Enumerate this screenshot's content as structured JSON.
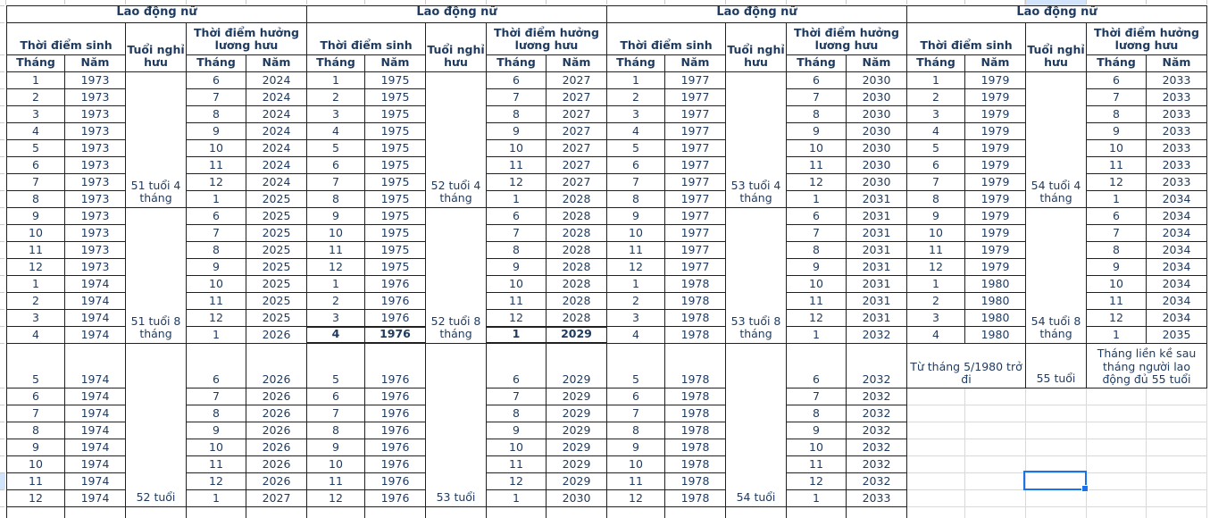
{
  "table": {
    "group_title": "Lao động nữ",
    "headers": {
      "birth": "Thời điểm sinh",
      "age": "Tuổi nghỉ hưu",
      "pension": "Thời điểm hưởng lương hưu",
      "month": "Tháng",
      "year": "Năm"
    },
    "row_format": [
      "birth_month",
      "birth_year",
      "pension_month",
      "pension_year"
    ],
    "bold_row": {
      "group": 1,
      "segment": 1,
      "row": 7
    },
    "groups": [
      {
        "segments": [
          {
            "age": "51 tuổi 4 tháng",
            "rows": [
              [
                1,
                1973,
                6,
                2024
              ],
              [
                2,
                1973,
                7,
                2024
              ],
              [
                3,
                1973,
                8,
                2024
              ],
              [
                4,
                1973,
                9,
                2024
              ],
              [
                5,
                1973,
                10,
                2024
              ],
              [
                6,
                1973,
                11,
                2024
              ],
              [
                7,
                1973,
                12,
                2024
              ],
              [
                8,
                1973,
                1,
                2025
              ]
            ]
          },
          {
            "age": "51 tuổi 8 tháng",
            "rows": [
              [
                9,
                1973,
                6,
                2025
              ],
              [
                10,
                1973,
                7,
                2025
              ],
              [
                11,
                1973,
                8,
                2025
              ],
              [
                12,
                1973,
                9,
                2025
              ],
              [
                1,
                1974,
                10,
                2025
              ],
              [
                2,
                1974,
                11,
                2025
              ],
              [
                3,
                1974,
                12,
                2025
              ],
              [
                4,
                1974,
                1,
                2026
              ]
            ]
          },
          {
            "age": "52 tuổi",
            "rows": [
              [
                5,
                1974,
                6,
                2026
              ],
              [
                6,
                1974,
                7,
                2026
              ],
              [
                7,
                1974,
                8,
                2026
              ],
              [
                8,
                1974,
                9,
                2026
              ],
              [
                9,
                1974,
                10,
                2026
              ],
              [
                10,
                1974,
                11,
                2026
              ],
              [
                11,
                1974,
                12,
                2026
              ],
              [
                12,
                1974,
                1,
                2027
              ]
            ]
          }
        ]
      },
      {
        "segments": [
          {
            "age": "52 tuổi 4 tháng",
            "rows": [
              [
                1,
                1975,
                6,
                2027
              ],
              [
                2,
                1975,
                7,
                2027
              ],
              [
                3,
                1975,
                8,
                2027
              ],
              [
                4,
                1975,
                9,
                2027
              ],
              [
                5,
                1975,
                10,
                2027
              ],
              [
                6,
                1975,
                11,
                2027
              ],
              [
                7,
                1975,
                12,
                2027
              ],
              [
                8,
                1975,
                1,
                2028
              ]
            ]
          },
          {
            "age": "52 tuổi 8 tháng",
            "rows": [
              [
                9,
                1975,
                6,
                2028
              ],
              [
                10,
                1975,
                7,
                2028
              ],
              [
                11,
                1975,
                8,
                2028
              ],
              [
                12,
                1975,
                9,
                2028
              ],
              [
                1,
                1976,
                10,
                2028
              ],
              [
                2,
                1976,
                11,
                2028
              ],
              [
                3,
                1976,
                12,
                2028
              ],
              [
                4,
                1976,
                1,
                2029
              ]
            ]
          },
          {
            "age": "53 tuổi",
            "rows": [
              [
                5,
                1976,
                6,
                2029
              ],
              [
                6,
                1976,
                7,
                2029
              ],
              [
                7,
                1976,
                8,
                2029
              ],
              [
                8,
                1976,
                9,
                2029
              ],
              [
                9,
                1976,
                10,
                2029
              ],
              [
                10,
                1976,
                11,
                2029
              ],
              [
                11,
                1976,
                12,
                2029
              ],
              [
                12,
                1976,
                1,
                2030
              ]
            ]
          }
        ]
      },
      {
        "segments": [
          {
            "age": "53 tuổi 4 tháng",
            "rows": [
              [
                1,
                1977,
                6,
                2030
              ],
              [
                2,
                1977,
                7,
                2030
              ],
              [
                3,
                1977,
                8,
                2030
              ],
              [
                4,
                1977,
                9,
                2030
              ],
              [
                5,
                1977,
                10,
                2030
              ],
              [
                6,
                1977,
                11,
                2030
              ],
              [
                7,
                1977,
                12,
                2030
              ],
              [
                8,
                1977,
                1,
                2031
              ]
            ]
          },
          {
            "age": "53 tuổi 8 tháng",
            "rows": [
              [
                9,
                1977,
                6,
                2031
              ],
              [
                10,
                1977,
                7,
                2031
              ],
              [
                11,
                1977,
                8,
                2031
              ],
              [
                12,
                1977,
                9,
                2031
              ],
              [
                1,
                1978,
                10,
                2031
              ],
              [
                2,
                1978,
                11,
                2031
              ],
              [
                3,
                1978,
                12,
                2031
              ],
              [
                4,
                1978,
                1,
                2032
              ]
            ]
          },
          {
            "age": "54 tuổi",
            "rows": [
              [
                5,
                1978,
                6,
                2032
              ],
              [
                6,
                1978,
                7,
                2032
              ],
              [
                7,
                1978,
                8,
                2032
              ],
              [
                8,
                1978,
                9,
                2032
              ],
              [
                9,
                1978,
                10,
                2032
              ],
              [
                10,
                1978,
                11,
                2032
              ],
              [
                11,
                1978,
                12,
                2032
              ],
              [
                12,
                1978,
                1,
                2033
              ]
            ]
          }
        ]
      },
      {
        "segments": [
          {
            "age": "54 tuổi 4 tháng",
            "rows": [
              [
                1,
                1979,
                6,
                2033
              ],
              [
                2,
                1979,
                7,
                2033
              ],
              [
                3,
                1979,
                8,
                2033
              ],
              [
                4,
                1979,
                9,
                2033
              ],
              [
                5,
                1979,
                10,
                2033
              ],
              [
                6,
                1979,
                11,
                2033
              ],
              [
                7,
                1979,
                12,
                2033
              ],
              [
                8,
                1979,
                1,
                2034
              ]
            ]
          },
          {
            "age": "54 tuổi 8 tháng",
            "rows": [
              [
                9,
                1979,
                6,
                2034
              ],
              [
                10,
                1979,
                7,
                2034
              ],
              [
                11,
                1979,
                8,
                2034
              ],
              [
                12,
                1979,
                9,
                2034
              ],
              [
                1,
                1980,
                10,
                2034
              ],
              [
                2,
                1980,
                11,
                2034
              ],
              [
                3,
                1980,
                12,
                2034
              ],
              [
                4,
                1980,
                1,
                2035
              ]
            ]
          }
        ],
        "special": {
          "birth": "Từ tháng 5/1980 trở đi",
          "age": "55 tuổi",
          "pension": "Tháng liền kề sau tháng người lao động đủ 55 tuổi"
        }
      }
    ]
  },
  "colors": {
    "text": "#1e3a5f",
    "table_border": "#212121",
    "gridline": "#d9d9d9",
    "selection": "#1a73e8",
    "header_highlight": "#d2e3fc"
  }
}
